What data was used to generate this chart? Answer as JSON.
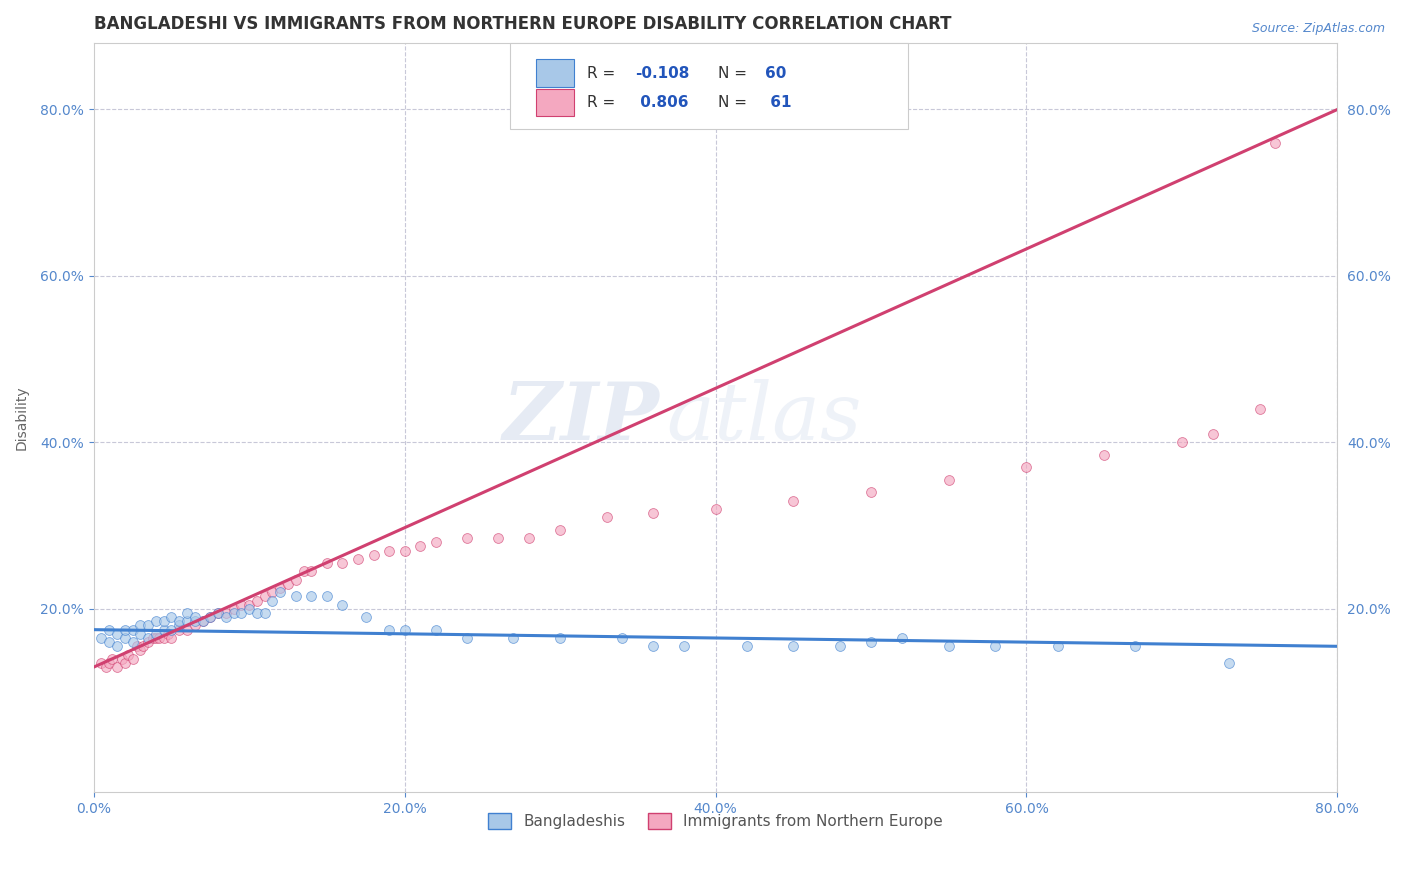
{
  "title": "BANGLADESHI VS IMMIGRANTS FROM NORTHERN EUROPE DISABILITY CORRELATION CHART",
  "source": "Source: ZipAtlas.com",
  "ylabel": "Disability",
  "xlim": [
    0.0,
    0.8
  ],
  "ylim": [
    -0.02,
    0.88
  ],
  "xtick_labels": [
    "0.0%",
    "20.0%",
    "40.0%",
    "60.0%",
    "80.0%"
  ],
  "xtick_vals": [
    0.0,
    0.2,
    0.4,
    0.6,
    0.8
  ],
  "ytick_labels": [
    "20.0%",
    "40.0%",
    "60.0%",
    "80.0%"
  ],
  "ytick_vals": [
    0.2,
    0.4,
    0.6,
    0.8
  ],
  "legend_r1": "R = -0.108",
  "legend_n1": "N = 60",
  "legend_r2": "R =  0.806",
  "legend_n2": "N =  61",
  "color_blue": "#a8c8e8",
  "color_pink": "#f4a8c0",
  "line_blue": "#4080d0",
  "line_pink": "#d04070",
  "watermark_zip": "ZIP",
  "watermark_atlas": "atlas",
  "grid_color": "#c8c8d8",
  "background_color": "#ffffff",
  "title_fontsize": 12,
  "label_fontsize": 10,
  "tick_fontsize": 10,
  "scatter_size": 50,
  "scatter_alpha": 0.65,
  "blue_scatter_x": [
    0.005,
    0.01,
    0.01,
    0.015,
    0.015,
    0.02,
    0.02,
    0.025,
    0.025,
    0.03,
    0.03,
    0.035,
    0.035,
    0.04,
    0.04,
    0.045,
    0.045,
    0.05,
    0.05,
    0.055,
    0.055,
    0.06,
    0.06,
    0.065,
    0.065,
    0.07,
    0.075,
    0.08,
    0.085,
    0.09,
    0.095,
    0.1,
    0.105,
    0.11,
    0.115,
    0.12,
    0.13,
    0.14,
    0.15,
    0.16,
    0.175,
    0.19,
    0.2,
    0.22,
    0.24,
    0.27,
    0.3,
    0.34,
    0.36,
    0.38,
    0.42,
    0.45,
    0.48,
    0.5,
    0.52,
    0.55,
    0.58,
    0.62,
    0.67,
    0.73
  ],
  "blue_scatter_y": [
    0.165,
    0.16,
    0.175,
    0.155,
    0.17,
    0.165,
    0.175,
    0.16,
    0.175,
    0.17,
    0.18,
    0.165,
    0.18,
    0.17,
    0.185,
    0.175,
    0.185,
    0.175,
    0.19,
    0.18,
    0.185,
    0.185,
    0.195,
    0.185,
    0.19,
    0.185,
    0.19,
    0.195,
    0.19,
    0.195,
    0.195,
    0.2,
    0.195,
    0.195,
    0.21,
    0.22,
    0.215,
    0.215,
    0.215,
    0.205,
    0.19,
    0.175,
    0.175,
    0.175,
    0.165,
    0.165,
    0.165,
    0.165,
    0.155,
    0.155,
    0.155,
    0.155,
    0.155,
    0.16,
    0.165,
    0.155,
    0.155,
    0.155,
    0.155,
    0.135
  ],
  "pink_scatter_x": [
    0.005,
    0.008,
    0.01,
    0.012,
    0.015,
    0.018,
    0.02,
    0.022,
    0.025,
    0.028,
    0.03,
    0.032,
    0.035,
    0.038,
    0.04,
    0.042,
    0.045,
    0.048,
    0.05,
    0.055,
    0.06,
    0.065,
    0.07,
    0.075,
    0.08,
    0.085,
    0.09,
    0.095,
    0.1,
    0.105,
    0.11,
    0.115,
    0.12,
    0.125,
    0.13,
    0.135,
    0.14,
    0.15,
    0.16,
    0.17,
    0.18,
    0.19,
    0.2,
    0.21,
    0.22,
    0.24,
    0.26,
    0.28,
    0.3,
    0.33,
    0.36,
    0.4,
    0.45,
    0.5,
    0.55,
    0.6,
    0.65,
    0.7,
    0.72,
    0.75,
    0.76
  ],
  "pink_scatter_y": [
    0.135,
    0.13,
    0.135,
    0.14,
    0.13,
    0.14,
    0.135,
    0.145,
    0.14,
    0.155,
    0.15,
    0.155,
    0.16,
    0.165,
    0.165,
    0.165,
    0.165,
    0.17,
    0.165,
    0.175,
    0.175,
    0.18,
    0.185,
    0.19,
    0.195,
    0.195,
    0.2,
    0.205,
    0.205,
    0.21,
    0.215,
    0.22,
    0.225,
    0.23,
    0.235,
    0.245,
    0.245,
    0.255,
    0.255,
    0.26,
    0.265,
    0.27,
    0.27,
    0.275,
    0.28,
    0.285,
    0.285,
    0.285,
    0.295,
    0.31,
    0.315,
    0.32,
    0.33,
    0.34,
    0.355,
    0.37,
    0.385,
    0.4,
    0.41,
    0.44,
    0.76
  ],
  "blue_line_x": [
    0.0,
    0.8
  ],
  "blue_line_y": [
    0.175,
    0.155
  ],
  "pink_line_x": [
    0.0,
    0.8
  ],
  "pink_line_y": [
    0.13,
    0.8
  ]
}
